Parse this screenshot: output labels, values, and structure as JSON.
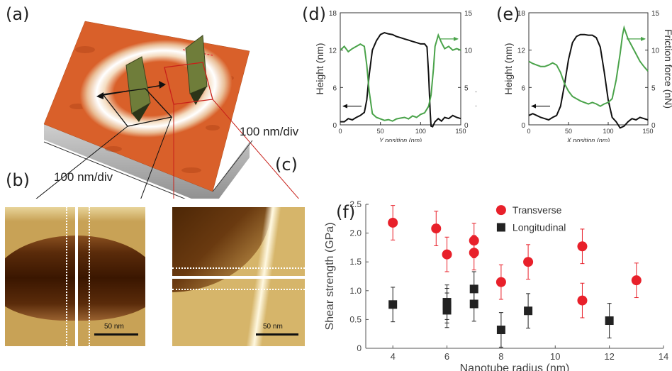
{
  "panels": {
    "a": {
      "label": "(a)",
      "axis_right": "100 nm/div",
      "axis_left": "100 nm/div"
    },
    "b": {
      "label": "(b)",
      "scale": "50 nm"
    },
    "c": {
      "label": "(c)",
      "scale": "50 nm"
    },
    "d": {
      "label": "(d)"
    },
    "e": {
      "label": "(e)"
    },
    "f": {
      "label": "(f)"
    }
  },
  "colors": {
    "black_series": "#111111",
    "green_series": "#4aa34a",
    "transverse": "#e8202a",
    "longitudinal": "#222222",
    "surface": "#d9602a"
  },
  "chart_data": [
    {
      "id": "d",
      "type": "line",
      "xlabel": "Y position (nm)",
      "ylabel": "Height (nm)",
      "y2label": "Friction force (nN)",
      "xlim": [
        0,
        150
      ],
      "ylim": [
        0,
        18
      ],
      "y2lim": [
        0,
        15
      ],
      "xticks": [
        "0",
        "50",
        "100",
        "150"
      ],
      "yticks": [
        "0",
        "6",
        "12",
        "18"
      ],
      "y2ticks": [
        "0",
        "5",
        "10",
        "15"
      ],
      "series": [
        {
          "axis": "left",
          "color": "#111111",
          "arrow": "left",
          "x": [
            0,
            5,
            10,
            15,
            20,
            25,
            30,
            33,
            36,
            40,
            45,
            50,
            55,
            60,
            65,
            70,
            75,
            80,
            85,
            90,
            95,
            100,
            105,
            108,
            110,
            112,
            113,
            115,
            118,
            122,
            126,
            130,
            135,
            140,
            145,
            150
          ],
          "y": [
            0.5,
            0.5,
            1.0,
            0.8,
            1.2,
            1.5,
            2.0,
            4.0,
            8.0,
            12.0,
            13.5,
            14.5,
            14.8,
            14.6,
            14.5,
            14.2,
            14.0,
            13.8,
            13.6,
            13.4,
            13.2,
            13.0,
            13.0,
            12.5,
            8.0,
            2.0,
            -0.2,
            -0.3,
            0.5,
            1.0,
            0.6,
            1.2,
            1.0,
            1.5,
            1.2,
            1.0
          ]
        },
        {
          "axis": "right",
          "color": "#4aa34a",
          "arrow": "right",
          "x": [
            0,
            5,
            10,
            15,
            20,
            25,
            30,
            33,
            36,
            40,
            45,
            50,
            55,
            60,
            65,
            70,
            75,
            80,
            85,
            90,
            95,
            100,
            105,
            110,
            113,
            116,
            118,
            122,
            126,
            130,
            135,
            140,
            145,
            150
          ],
          "y": [
            10,
            10.5,
            9.8,
            10.2,
            10.5,
            10.8,
            10.5,
            8.0,
            4.5,
            1.5,
            1.0,
            0.8,
            0.6,
            0.7,
            0.5,
            0.8,
            0.9,
            1.0,
            0.8,
            1.2,
            1.0,
            1.4,
            1.6,
            2.5,
            4.0,
            7.5,
            10.5,
            12.0,
            11.0,
            10.2,
            10.5,
            10.0,
            10.2,
            10.0
          ]
        }
      ]
    },
    {
      "id": "e",
      "type": "line",
      "xlabel": "X position (nm)",
      "ylabel": "Height (nm)",
      "y2label": "Friction force (nN)",
      "xlim": [
        0,
        150
      ],
      "ylim": [
        0,
        18
      ],
      "y2lim": [
        0,
        15
      ],
      "xticks": [
        "0",
        "50",
        "100",
        "150"
      ],
      "yticks": [
        "0",
        "6",
        "12",
        "18"
      ],
      "y2ticks": [
        "0",
        "5",
        "10",
        "15"
      ],
      "series": [
        {
          "axis": "left",
          "color": "#111111",
          "arrow": "left",
          "x": [
            0,
            5,
            10,
            15,
            20,
            25,
            30,
            35,
            40,
            45,
            50,
            55,
            60,
            65,
            70,
            75,
            80,
            85,
            90,
            95,
            100,
            105,
            110,
            115,
            120,
            125,
            130,
            135,
            140,
            145,
            150
          ],
          "y": [
            1.5,
            1.8,
            1.5,
            1.2,
            1.0,
            0.8,
            1.2,
            1.5,
            3.0,
            6.5,
            10.5,
            13.2,
            14.2,
            14.5,
            14.5,
            14.4,
            14.4,
            14.0,
            12.5,
            8.5,
            4.0,
            1.2,
            0.5,
            -0.5,
            -0.2,
            0.5,
            1.0,
            0.8,
            1.2,
            1.0,
            0.8
          ]
        },
        {
          "axis": "right",
          "color": "#4aa34a",
          "arrow": "right",
          "x": [
            0,
            5,
            10,
            15,
            20,
            25,
            30,
            35,
            40,
            45,
            50,
            55,
            60,
            65,
            70,
            75,
            80,
            85,
            90,
            95,
            100,
            105,
            110,
            115,
            118,
            120,
            125,
            130,
            135,
            140,
            145,
            150
          ],
          "y": [
            8.5,
            8.2,
            8.0,
            7.8,
            7.8,
            8.0,
            8.3,
            8.0,
            7.0,
            5.5,
            4.5,
            3.8,
            3.5,
            3.2,
            3.0,
            2.8,
            3.0,
            2.8,
            2.5,
            2.8,
            3.0,
            3.5,
            6.0,
            9.5,
            12.0,
            13.0,
            11.5,
            10.5,
            9.5,
            8.5,
            7.8,
            7.2
          ]
        }
      ]
    },
    {
      "id": "f",
      "type": "scatter",
      "xlabel": "Nanotube radius (nm)",
      "ylabel": "Shear strength (GPa)",
      "xlim": [
        3,
        14
      ],
      "ylim": [
        0,
        2.5
      ],
      "xticks": [
        "4",
        "6",
        "8",
        "10",
        "12",
        "14"
      ],
      "yticks": [
        "0",
        "0.5",
        "1.0",
        "1.5",
        "2.0",
        "2.5"
      ],
      "legend": "top-center",
      "series": [
        {
          "name": "Transverse",
          "marker": "circle",
          "color": "#e8202a",
          "points": [
            {
              "x": 4,
              "y": 2.18,
              "err": 0.3
            },
            {
              "x": 5.6,
              "y": 2.08,
              "err": 0.3
            },
            {
              "x": 6,
              "y": 1.63,
              "err": 0.3
            },
            {
              "x": 7,
              "y": 1.87,
              "err": 0.3
            },
            {
              "x": 7,
              "y": 1.66,
              "err": 0.3
            },
            {
              "x": 8,
              "y": 1.15,
              "err": 0.3
            },
            {
              "x": 9,
              "y": 1.5,
              "err": 0.3
            },
            {
              "x": 11,
              "y": 1.77,
              "err": 0.3
            },
            {
              "x": 11,
              "y": 0.83,
              "err": 0.3
            },
            {
              "x": 13,
              "y": 1.18,
              "err": 0.3
            }
          ]
        },
        {
          "name": "Longitudinal",
          "marker": "square",
          "color": "#222222",
          "points": [
            {
              "x": 4,
              "y": 0.76,
              "err": 0.3
            },
            {
              "x": 6,
              "y": 0.8,
              "err": 0.3
            },
            {
              "x": 6,
              "y": 0.74,
              "err": 0.3
            },
            {
              "x": 6,
              "y": 0.66,
              "err": 0.3
            },
            {
              "x": 7,
              "y": 1.03,
              "err": 0.3
            },
            {
              "x": 7,
              "y": 0.77,
              "err": 0.3
            },
            {
              "x": 8,
              "y": 0.32,
              "err": 0.3
            },
            {
              "x": 9,
              "y": 0.65,
              "err": 0.3
            },
            {
              "x": 12,
              "y": 0.48,
              "err": 0.3
            }
          ]
        }
      ]
    }
  ]
}
